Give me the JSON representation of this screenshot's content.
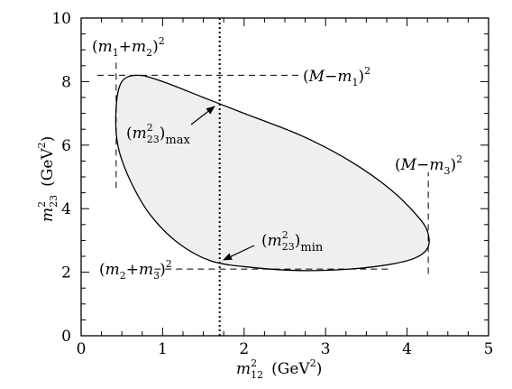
{
  "chart_data": {
    "type": "scatter",
    "xlim": [
      0,
      5
    ],
    "ylim": [
      0,
      10
    ],
    "x_ticks": [
      "0",
      "1",
      "2",
      "3",
      "4",
      "5"
    ],
    "y_ticks": [
      "0",
      "2",
      "4",
      "6",
      "8",
      "10"
    ],
    "xlabel": {
      "var": "m",
      "sup": "2",
      "sub": "12",
      "unit": "(GeV",
      "unit_sup": "2",
      "unit_close": ")"
    },
    "ylabel": {
      "var": "m",
      "sup": "2",
      "sub": "23",
      "unit": "(GeV",
      "unit_sup": "2",
      "unit_close": ")"
    },
    "boundary": [
      [
        0.7,
        8.2
      ],
      [
        0.5,
        8.0
      ],
      [
        0.43,
        7.2
      ],
      [
        0.45,
        6.0
      ],
      [
        0.6,
        4.9
      ],
      [
        0.85,
        3.8
      ],
      [
        1.2,
        2.9
      ],
      [
        1.6,
        2.35
      ],
      [
        2.1,
        2.15
      ],
      [
        2.7,
        2.05
      ],
      [
        3.3,
        2.1
      ],
      [
        3.8,
        2.25
      ],
      [
        4.1,
        2.45
      ],
      [
        4.25,
        2.75
      ],
      [
        4.26,
        3.2
      ],
      [
        4.15,
        3.7
      ],
      [
        3.8,
        4.6
      ],
      [
        3.3,
        5.5
      ],
      [
        2.7,
        6.3
      ],
      [
        2.0,
        7.0
      ],
      [
        1.5,
        7.5
      ],
      [
        1.0,
        8.0
      ],
      [
        0.7,
        8.2
      ]
    ],
    "dashed_lines": [
      {
        "from": [
          0.43,
          4.65
        ],
        "to": [
          0.43,
          8.75
        ]
      },
      {
        "from": [
          0.2,
          8.2
        ],
        "to": [
          2.7,
          8.2
        ]
      },
      {
        "from": [
          4.26,
          1.95
        ],
        "to": [
          4.26,
          5.15
        ]
      },
      {
        "from": [
          0.9,
          2.1
        ],
        "to": [
          3.8,
          2.1
        ]
      }
    ],
    "vertical_dotted_x": 1.7,
    "annotations": {
      "m1m2": {
        "open": "(",
        "a": "m",
        "a_sub": "1",
        "plus": "+",
        "b": "m",
        "b_sub": "2",
        "close": ")",
        "sup": "2"
      },
      "Mm1": {
        "open": "(",
        "a": "M",
        "minus": "−",
        "b": "m",
        "b_sub": "1",
        "close": ")",
        "sup": "2"
      },
      "Mm3": {
        "open": "(",
        "a": "M",
        "minus": "−",
        "b": "m",
        "b_sub": "3",
        "close": ")",
        "sup": "2"
      },
      "m2m3": {
        "open": "(",
        "a": "m",
        "a_sub": "2",
        "plus": "+",
        "b": "m",
        "b_sub": "3",
        "close": ")",
        "sup": "2"
      },
      "m23max": {
        "open": "(",
        "var": "m",
        "sup": "2",
        "sub": "23",
        "close": ")",
        "qual": "max"
      },
      "m23min": {
        "open": "(",
        "var": "m",
        "sup": "2",
        "sub": "23",
        "close": ")",
        "qual": "min"
      }
    }
  }
}
